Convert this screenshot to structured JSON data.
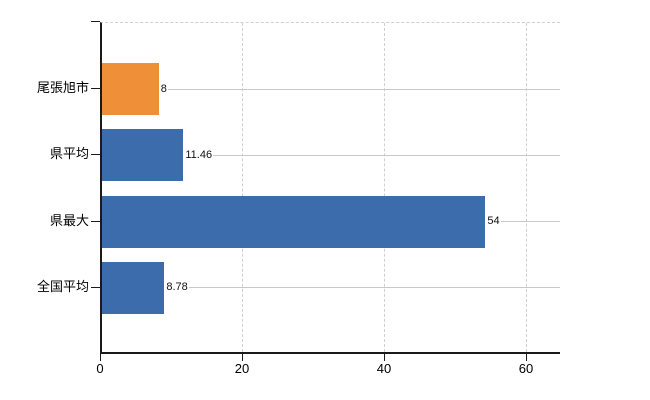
{
  "chart_data": {
    "type": "bar",
    "orientation": "horizontal",
    "title": "",
    "xlabel": "",
    "ylabel": "",
    "categories": [
      "尾張旭市",
      "県平均",
      "県最大",
      "全国平均"
    ],
    "series": [
      {
        "name": "value",
        "values": [
          8,
          11.46,
          54,
          8.78
        ]
      }
    ],
    "value_labels": [
      "8",
      "11.46",
      "54",
      "8.78"
    ],
    "bar_colors": [
      "#ef9038",
      "#3c6cab",
      "#3c6cab",
      "#3c6cab"
    ],
    "x_ticks": [
      0,
      20,
      40,
      60
    ],
    "x_tick_labels": [
      "0",
      "20",
      "40",
      "60"
    ],
    "xlim": [
      0,
      64.8
    ],
    "grid": "vertical dashed at ticks, horizontal solid leader line per category",
    "legend": "none"
  },
  "colors": {
    "highlight_bar": "#ef9038",
    "default_bar": "#3c6cab",
    "grid_dashed": "#cfcfcf",
    "grid_solid": "#c6c9c6",
    "axis": "#1a1a1a",
    "text": "#000000",
    "background": "#ffffff"
  }
}
